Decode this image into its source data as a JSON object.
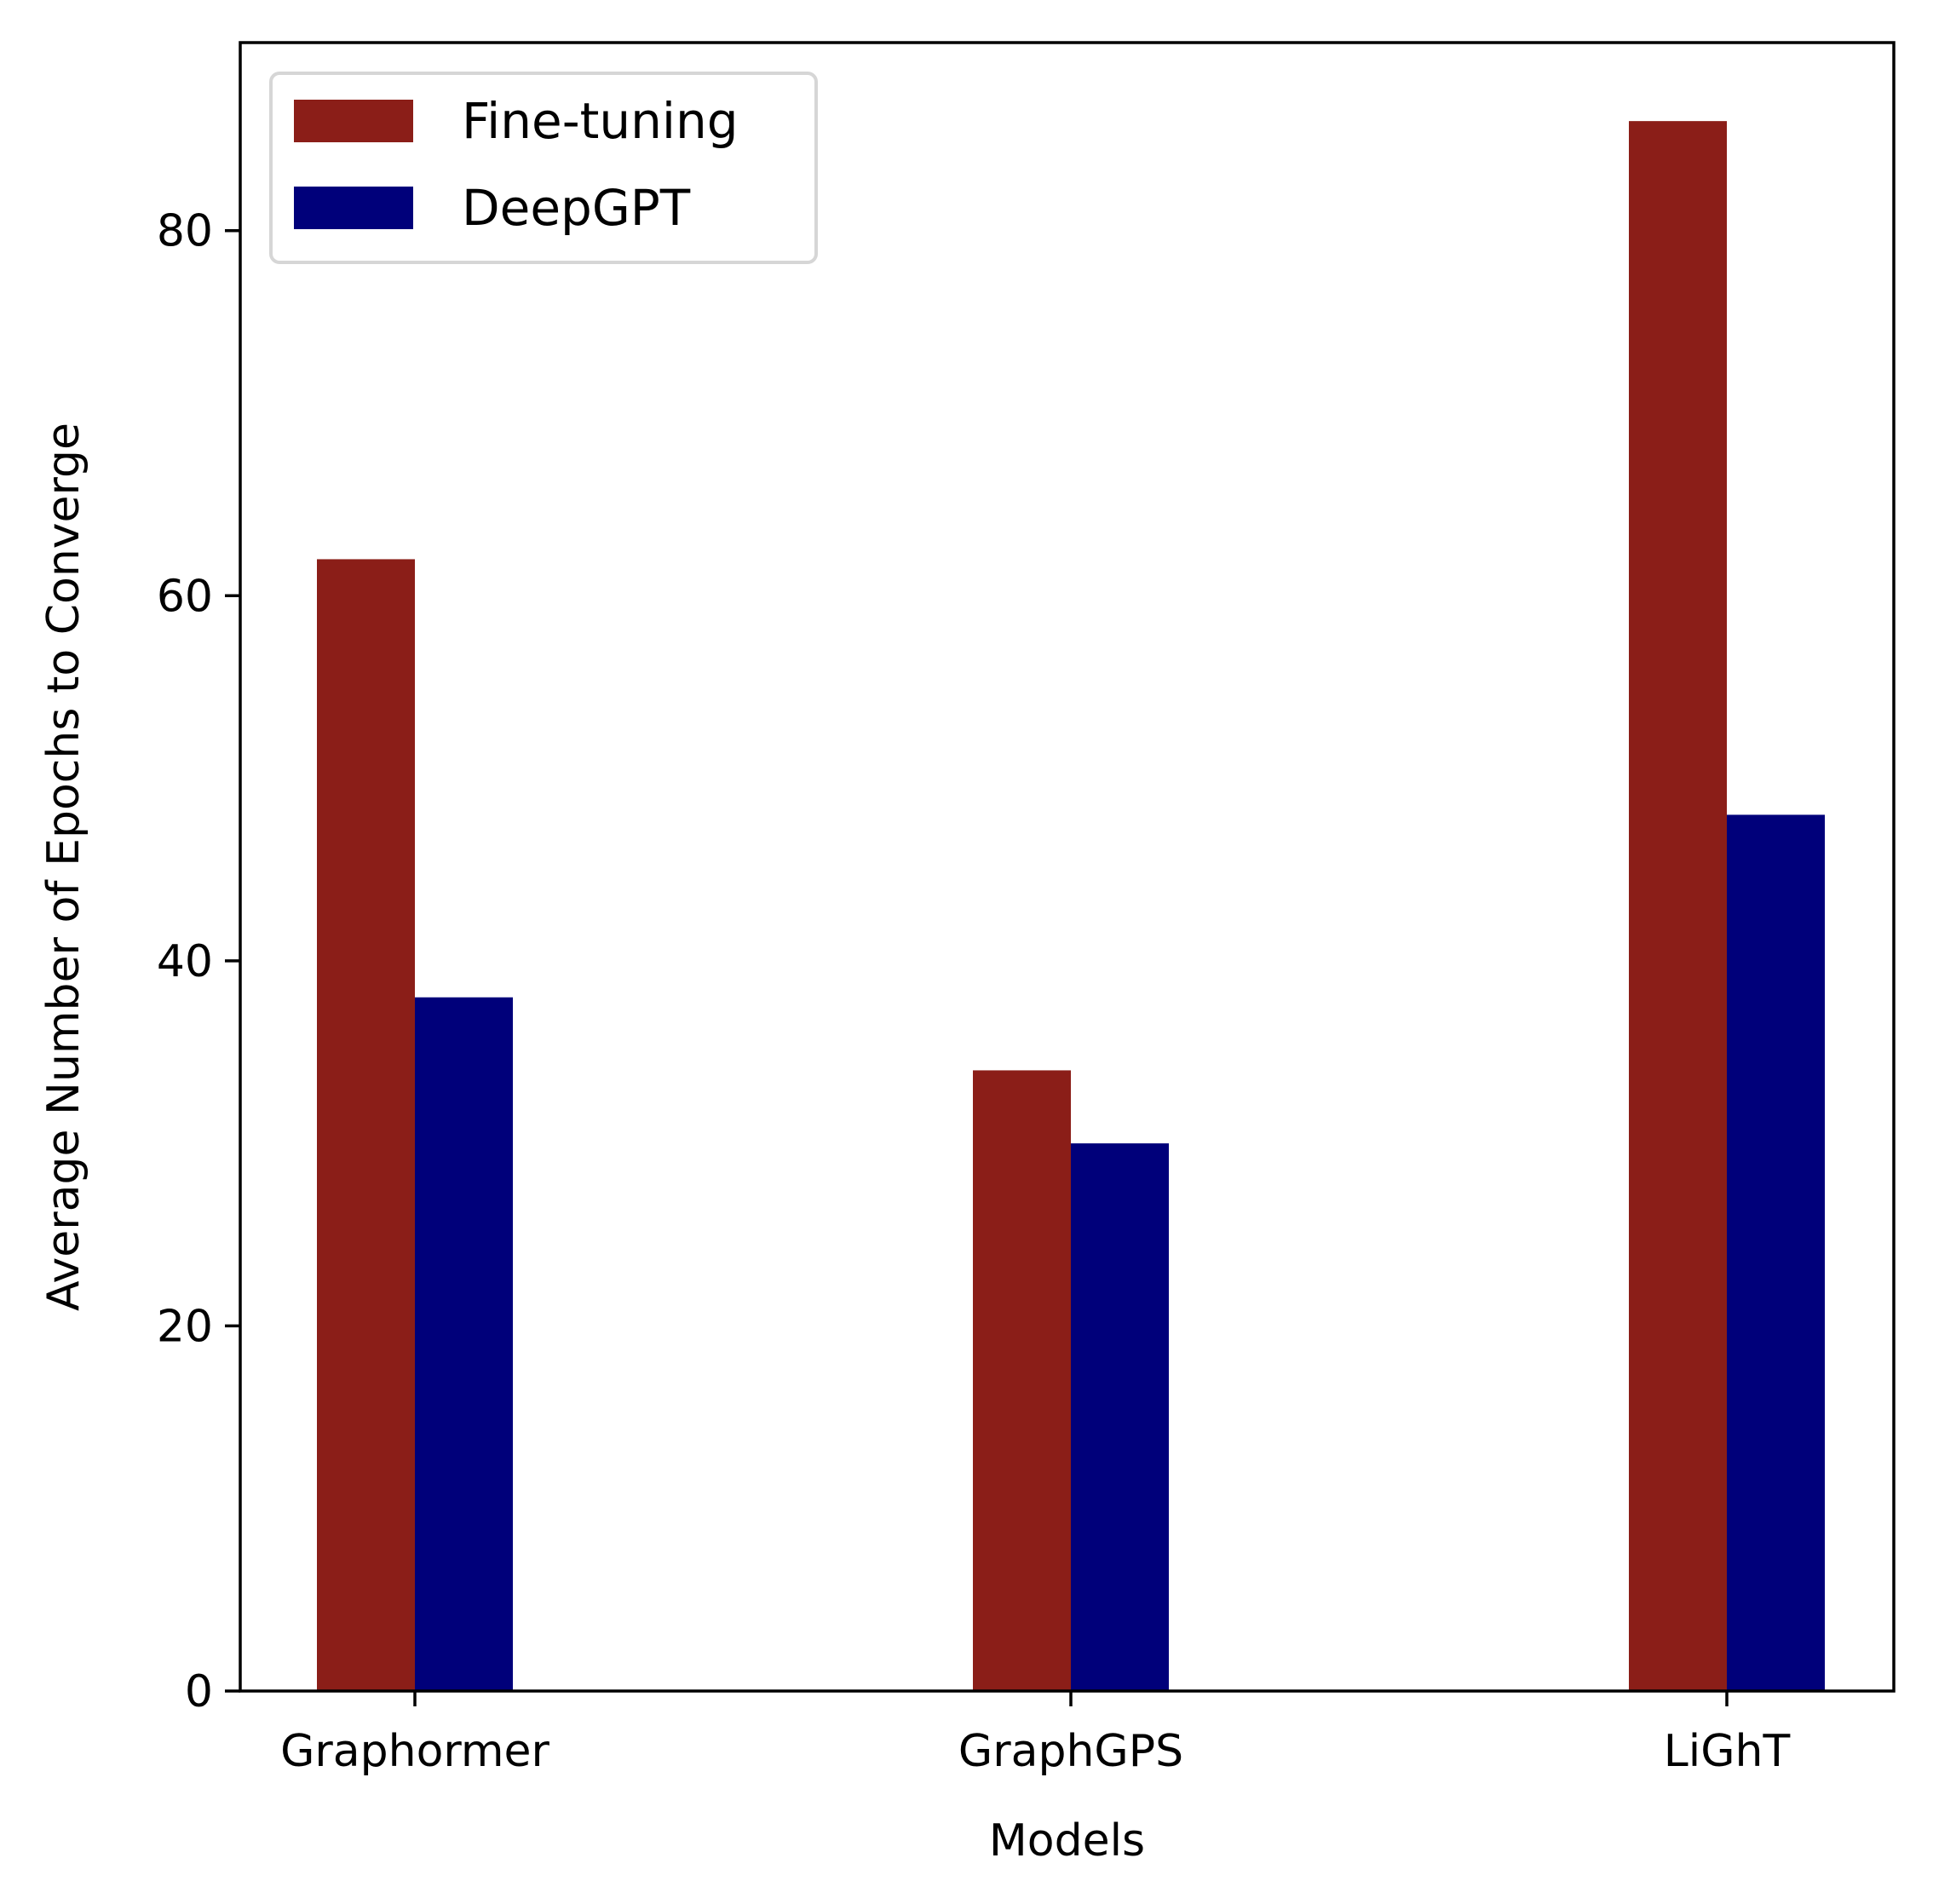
{
  "chart_data": {
    "type": "bar",
    "categories": [
      "Graphormer",
      "GraphGPS",
      "LiGhT"
    ],
    "series": [
      {
        "name": "Fine-tuning",
        "values": [
          62,
          34,
          86
        ],
        "color": "#8b1e18"
      },
      {
        "name": "DeepGPT",
        "values": [
          38,
          30,
          48
        ],
        "color": "#00007a"
      }
    ],
    "xlabel": "Models",
    "ylabel": "Average Number of Epochs to Converge",
    "ylim": [
      0,
      90.3
    ],
    "yticks": [
      0,
      20,
      40,
      60,
      80
    ],
    "legend_position": "top-left",
    "grid": false
  }
}
